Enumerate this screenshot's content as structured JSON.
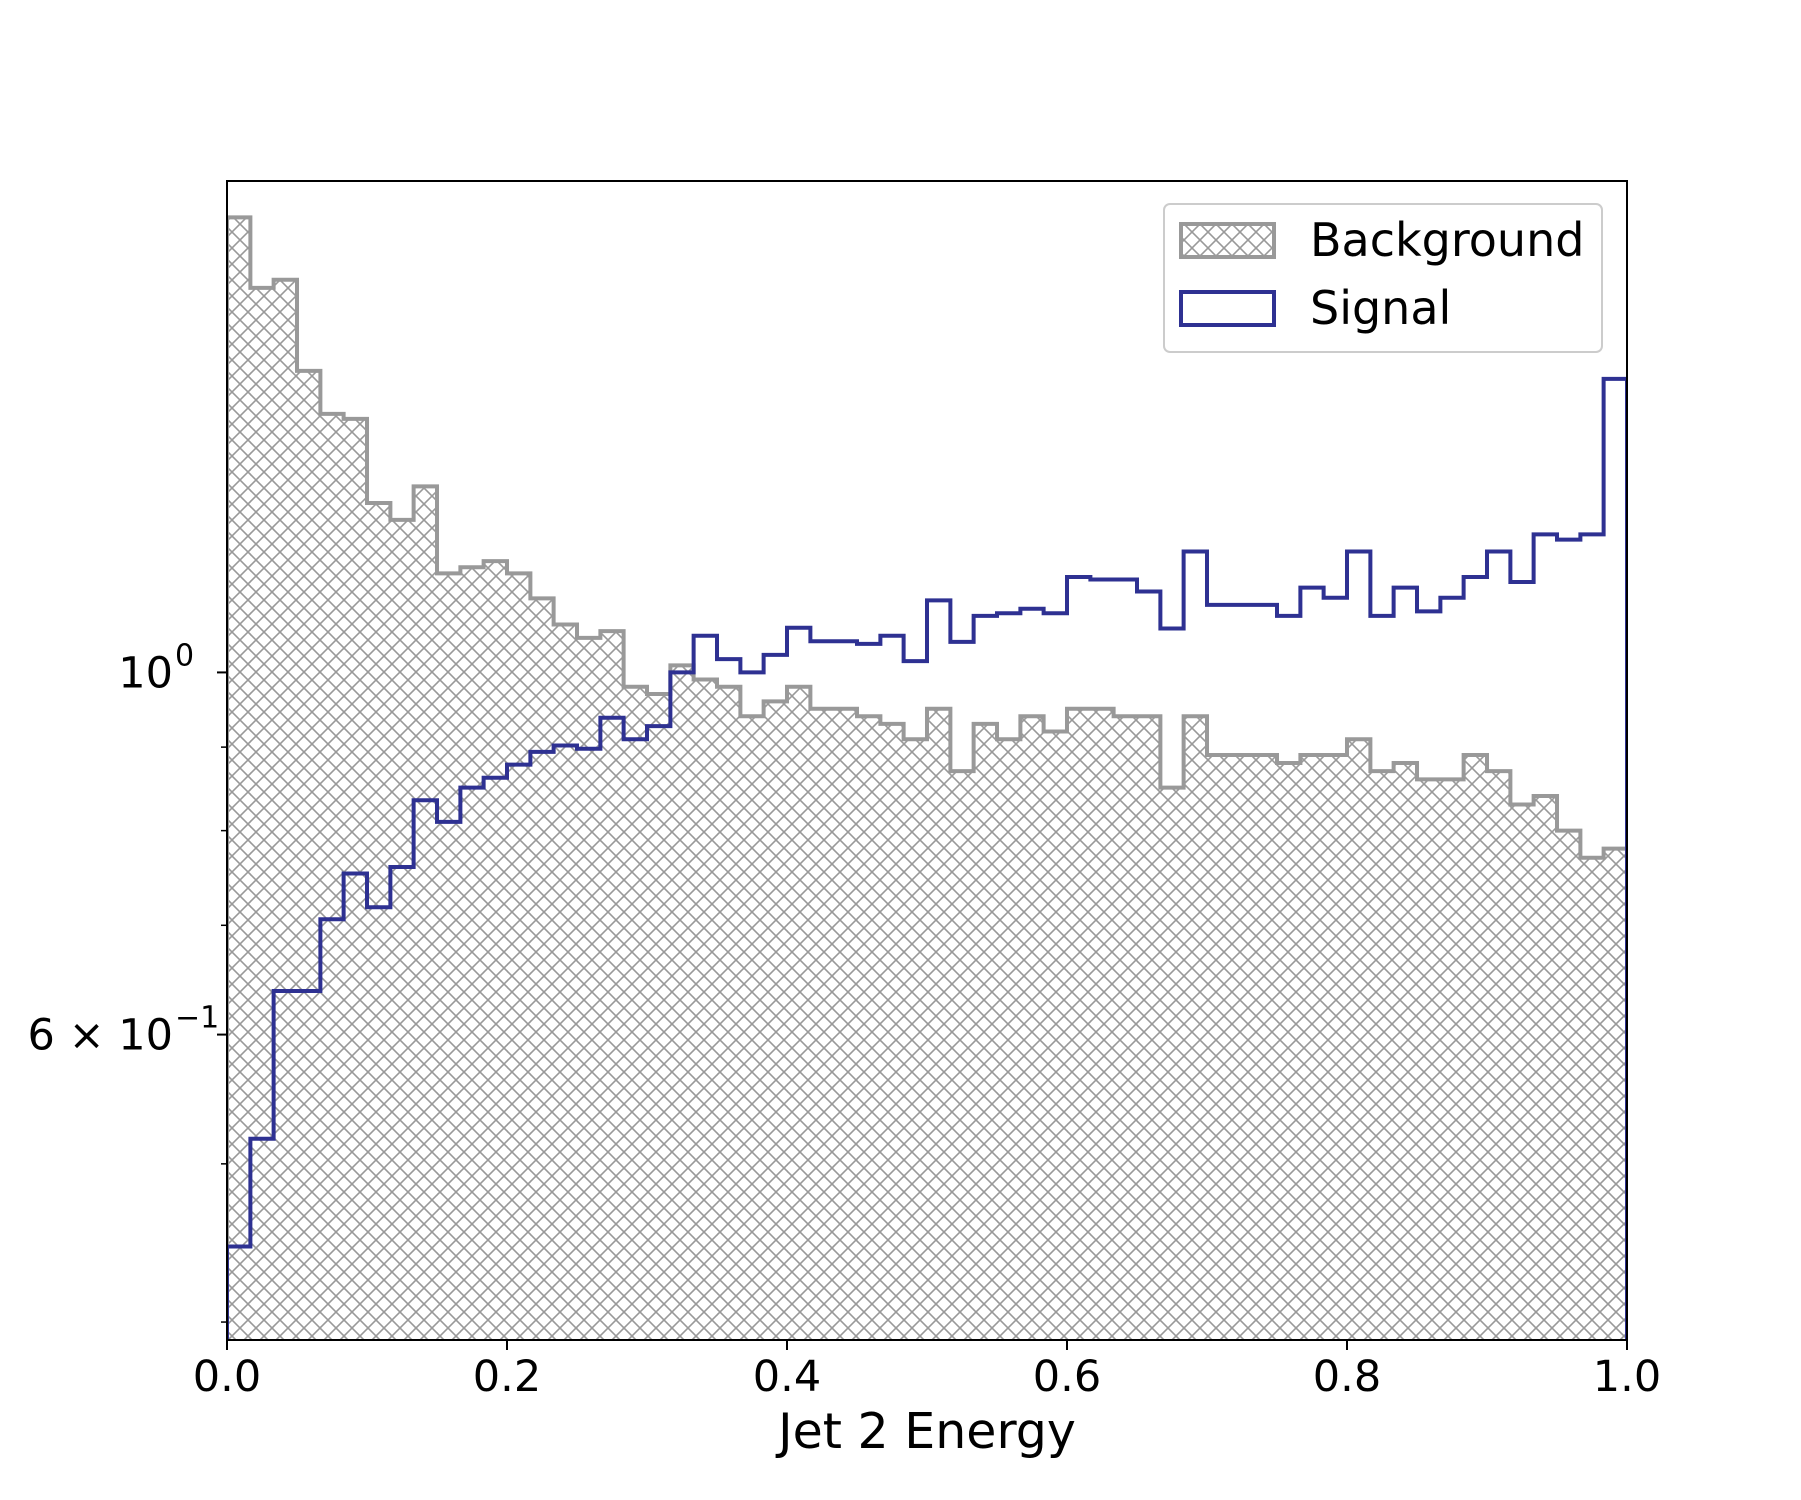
{
  "chart_data": {
    "type": "histogram",
    "xlabel": "Jet 2 Energy",
    "ylabel": "",
    "yscale": "log",
    "xlim": [
      0.0,
      1.0
    ],
    "ylim": [
      0.39,
      2.0
    ],
    "x_ticks": [
      {
        "value": 0.0,
        "label": "0.0"
      },
      {
        "value": 0.2,
        "label": "0.2"
      },
      {
        "value": 0.4,
        "label": "0.4"
      },
      {
        "value": 0.6,
        "label": "0.6"
      },
      {
        "value": 0.8,
        "label": "0.8"
      },
      {
        "value": 1.0,
        "label": "1.0"
      }
    ],
    "y_ticks": [
      {
        "value": 1.0,
        "label": "10",
        "exponent": "0"
      },
      {
        "value": 0.6,
        "label": "6 × 10",
        "exponent": "−1"
      }
    ],
    "legend": {
      "position": "upper right",
      "entries": [
        "Background",
        "Signal"
      ]
    },
    "bin_edges": [
      0.0,
      0.0167,
      0.0333,
      0.05,
      0.0667,
      0.0833,
      0.1,
      0.1167,
      0.1333,
      0.15,
      0.1667,
      0.1833,
      0.2,
      0.2167,
      0.2333,
      0.25,
      0.2667,
      0.2833,
      0.3,
      0.3167,
      0.3333,
      0.35,
      0.3667,
      0.3833,
      0.4,
      0.4167,
      0.4333,
      0.45,
      0.4667,
      0.4833,
      0.5,
      0.5167,
      0.5333,
      0.55,
      0.5667,
      0.5833,
      0.6,
      0.6167,
      0.6333,
      0.65,
      0.6667,
      0.6833,
      0.7,
      0.7167,
      0.7333,
      0.75,
      0.7667,
      0.7833,
      0.8,
      0.8167,
      0.8333,
      0.85,
      0.8667,
      0.8833,
      0.9,
      0.9167,
      0.9333,
      0.95,
      0.9667,
      0.9833,
      1.0
    ],
    "series": [
      {
        "name": "Background",
        "style": "hatched",
        "color": "#999999",
        "values": [
          1.9,
          1.72,
          1.74,
          1.53,
          1.44,
          1.43,
          1.27,
          1.24,
          1.3,
          1.15,
          1.16,
          1.17,
          1.15,
          1.11,
          1.07,
          1.05,
          1.06,
          0.98,
          0.97,
          1.01,
          0.99,
          0.98,
          0.94,
          0.96,
          0.98,
          0.95,
          0.95,
          0.94,
          0.93,
          0.91,
          0.95,
          0.87,
          0.93,
          0.91,
          0.94,
          0.92,
          0.95,
          0.95,
          0.94,
          0.94,
          0.85,
          0.94,
          0.89,
          0.89,
          0.89,
          0.88,
          0.89,
          0.89,
          0.91,
          0.87,
          0.88,
          0.86,
          0.86,
          0.89,
          0.87,
          0.83,
          0.84,
          0.8,
          0.77,
          0.78
        ]
      },
      {
        "name": "Signal",
        "style": "step",
        "color": "#2e3192",
        "values": [
          0.445,
          0.518,
          0.638,
          0.638,
          0.706,
          0.753,
          0.718,
          0.76,
          0.835,
          0.81,
          0.85,
          0.862,
          0.878,
          0.894,
          0.902,
          0.898,
          0.938,
          0.91,
          0.927,
          1.0,
          1.053,
          1.019,
          1.0,
          1.025,
          1.065,
          1.045,
          1.045,
          1.041,
          1.053,
          1.016,
          1.107,
          1.044,
          1.083,
          1.087,
          1.094,
          1.087,
          1.144,
          1.14,
          1.14,
          1.121,
          1.064,
          1.186,
          1.1,
          1.1,
          1.1,
          1.083,
          1.127,
          1.111,
          1.186,
          1.083,
          1.127,
          1.09,
          1.111,
          1.144,
          1.186,
          1.136,
          1.215,
          1.206,
          1.215,
          1.513
        ]
      }
    ]
  }
}
